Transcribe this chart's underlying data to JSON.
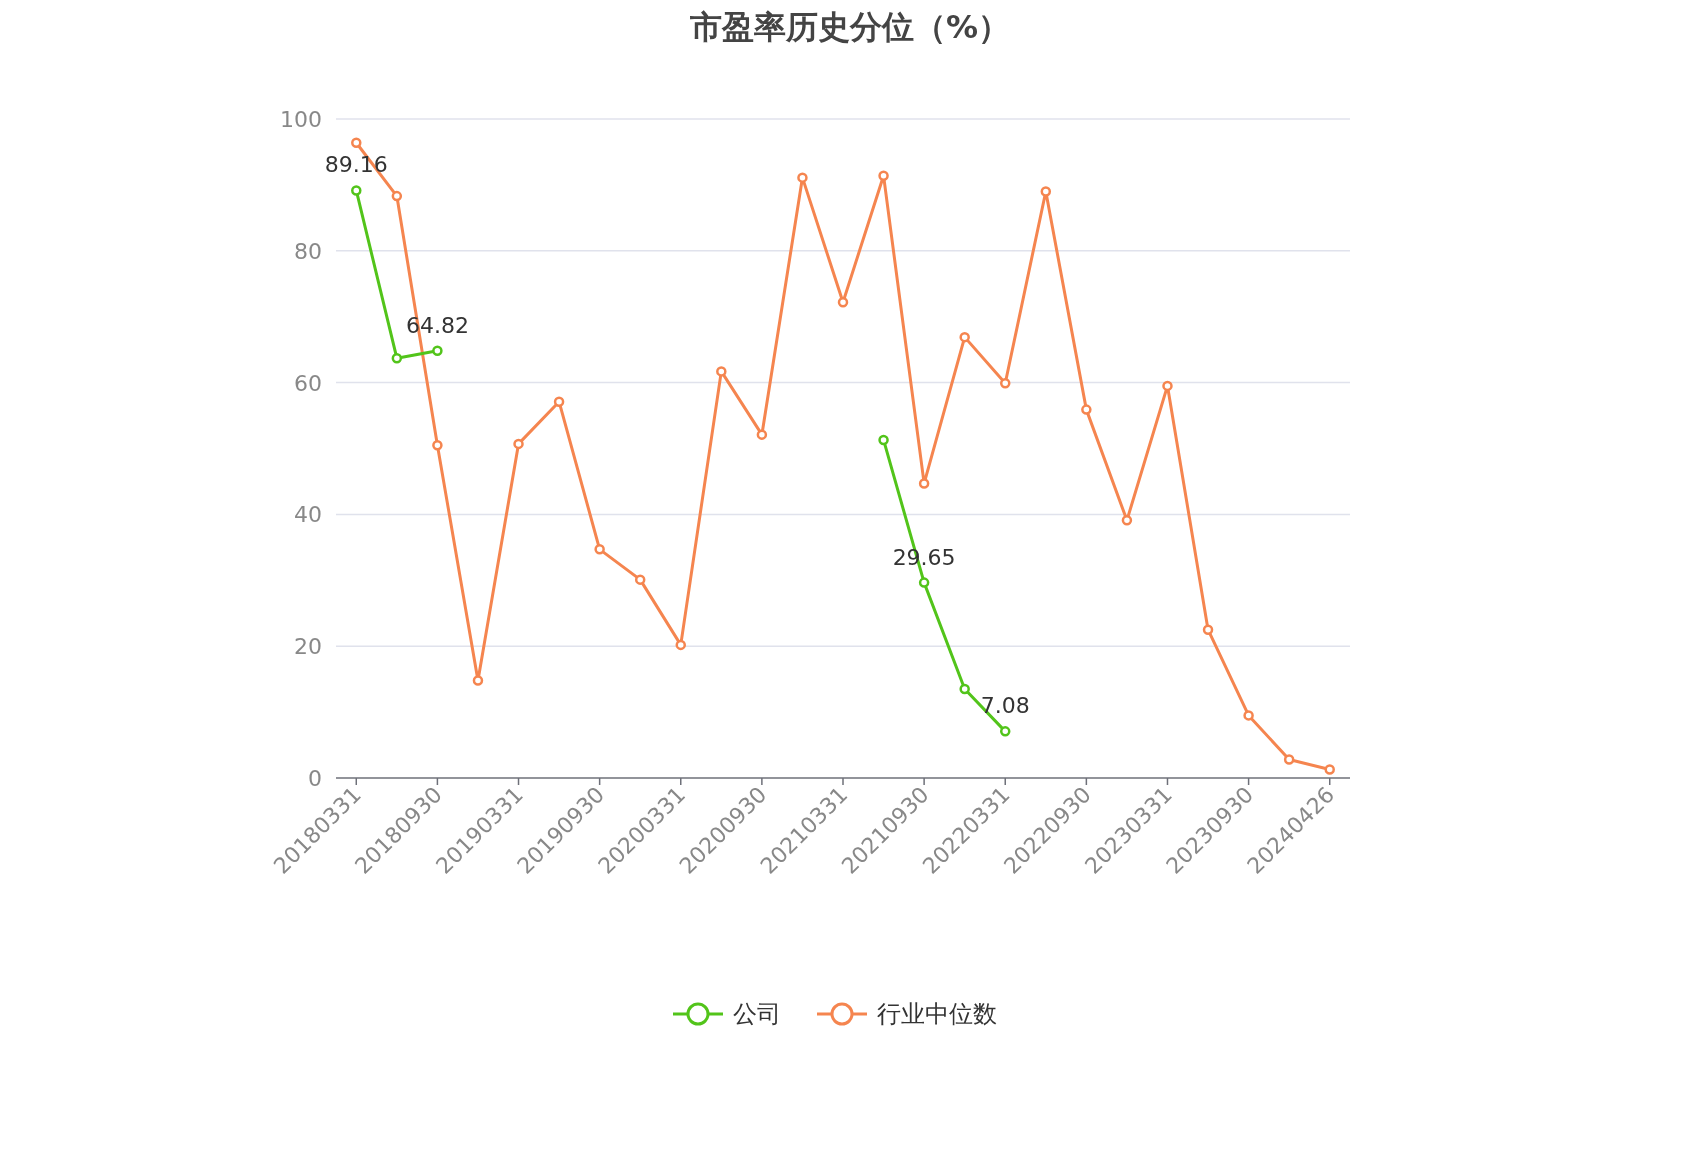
{
  "chart_data": {
    "type": "line",
    "title": "市盈率历史分位（%）",
    "categories": [
      "20180331",
      null,
      "20180930",
      null,
      "20190331",
      null,
      "20190930",
      null,
      "20200331",
      null,
      "20200930",
      null,
      "20210331",
      null,
      "20210930",
      null,
      "20220331",
      null,
      "20220930",
      null,
      "20230331",
      null,
      "20230930",
      null,
      "20240426"
    ],
    "series": [
      {
        "name": "公司",
        "color": "#52c41a",
        "values": [
          89.16,
          63.7,
          64.82,
          null,
          null,
          null,
          null,
          null,
          null,
          null,
          null,
          null,
          null,
          51.3,
          29.65,
          13.5,
          7.08,
          null,
          null,
          null,
          null,
          null,
          null,
          null,
          null
        ],
        "value_labels": [
          "89.16",
          null,
          "64.82",
          null,
          null,
          null,
          null,
          null,
          null,
          null,
          null,
          null,
          null,
          null,
          "29.65",
          null,
          "7.08",
          null,
          null,
          null,
          null,
          null,
          null,
          null,
          null
        ]
      },
      {
        "name": "行业中位数",
        "color": "#f5854f",
        "values": [
          96.4,
          88.3,
          50.5,
          14.8,
          50.7,
          57.1,
          34.7,
          30.1,
          20.2,
          61.7,
          52.1,
          91.1,
          72.2,
          91.4,
          44.7,
          66.9,
          59.9,
          89.0,
          55.9,
          39.1,
          59.5,
          22.5,
          9.5,
          2.8,
          1.3
        ]
      }
    ],
    "ylim": [
      0,
      100
    ],
    "yticks": [
      0,
      20,
      40,
      60,
      80,
      100
    ],
    "grid": "y",
    "legend": "bottom",
    "marker": "circle",
    "line_style": "solid"
  }
}
